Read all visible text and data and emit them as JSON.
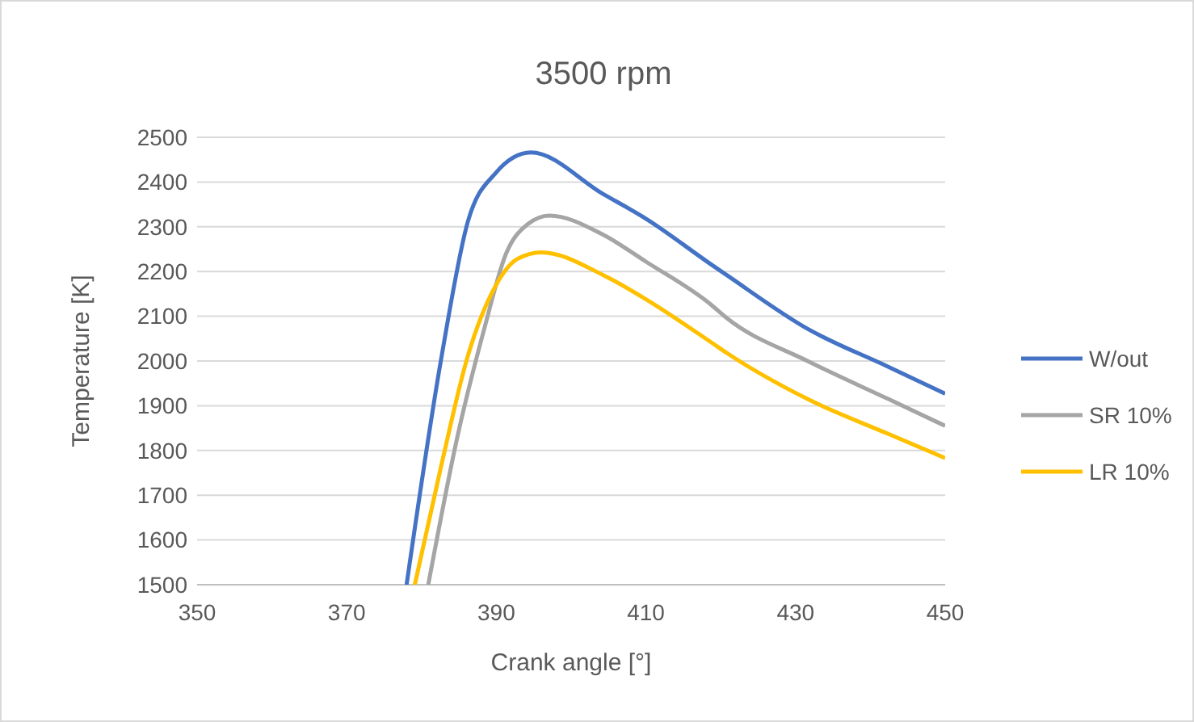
{
  "chart_data": {
    "type": "line",
    "title": "3500 rpm",
    "xlabel": "Crank angle [°]",
    "ylabel": "Temperature [K]",
    "xlim": [
      350,
      450
    ],
    "xticks": [
      350,
      370,
      390,
      410,
      430,
      450
    ],
    "ylim": [
      1500,
      2500
    ],
    "yticks": [
      1500,
      1600,
      1700,
      1800,
      1900,
      2000,
      2100,
      2200,
      2300,
      2400,
      2500
    ],
    "grid": "y",
    "legend": "right",
    "marker": "none",
    "line_style": "solid",
    "series": [
      {
        "name": "W/out",
        "color": "#4472c4",
        "x": [
          378.0,
          382.7,
          386.2,
          389.9,
          394.6,
          404.3,
          410.0,
          418.7,
          420.8,
          431.6,
          442.4,
          450
        ],
        "values": [
          1500,
          2012,
          2312,
          2420,
          2466,
          2373,
          2318,
          2216,
          2192,
          2072,
          1987,
          1927
        ]
      },
      {
        "name": "SR 10%",
        "color": "#a5a5a5",
        "x": [
          380.9,
          384.8,
          388.4,
          391.3,
          394.2,
          397.1,
          404.3,
          410.0,
          418.7,
          420.8,
          431.6,
          442.4,
          450
        ],
        "values": [
          1500,
          1831,
          2073,
          2240,
          2306,
          2325,
          2282,
          2222,
          2126,
          2096,
          2000,
          1915,
          1855
        ]
      },
      {
        "name": "LR 10%",
        "color": "#ffc000",
        "x": [
          379.1,
          382.7,
          386.2,
          389.9,
          392.8,
          396.0,
          404.3,
          410.0,
          418.7,
          420.8,
          431.6,
          442.4,
          450
        ],
        "values": [
          1500,
          1771,
          2012,
          2168,
          2228,
          2243,
          2192,
          2138,
          2042,
          2018,
          1915,
          1837,
          1783
        ]
      }
    ]
  }
}
